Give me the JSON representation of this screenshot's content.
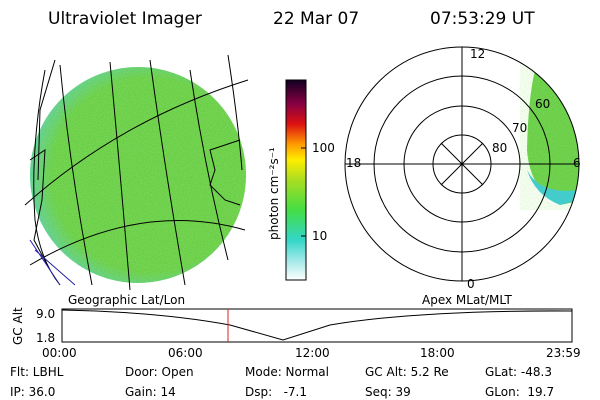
{
  "header": {
    "instrument": "Ultraviolet Imager",
    "date": "22 Mar 07",
    "time": "07:53:29 UT"
  },
  "colorbar": {
    "label": "photon cm⁻²s⁻¹",
    "ticks": [
      "100",
      "10"
    ]
  },
  "polar": {
    "mlt_labels": [
      "12",
      "18",
      "6",
      "0"
    ],
    "lat_labels": [
      "60",
      "70",
      "80"
    ]
  },
  "altitude": {
    "left_title": "Geographic Lat/Lon",
    "right_title": "Apex MLat/MLT",
    "axis_label": "GC Alt",
    "y_labels": [
      "9.0",
      "1.8"
    ],
    "x_labels": [
      "00:00",
      "06:00",
      "12:00",
      "18:00",
      "23:59"
    ]
  },
  "status": {
    "rows": [
      [
        "Flt: LBHL",
        "Door: Open",
        "Mode: Normal",
        "GC Alt: 5.2 Re",
        "GLat: -48.3"
      ],
      [
        "IP: 36.0",
        "Gain: 14",
        "Dsp:   -7.1",
        "Seq: 39",
        "GLon:  19.7"
      ]
    ]
  }
}
